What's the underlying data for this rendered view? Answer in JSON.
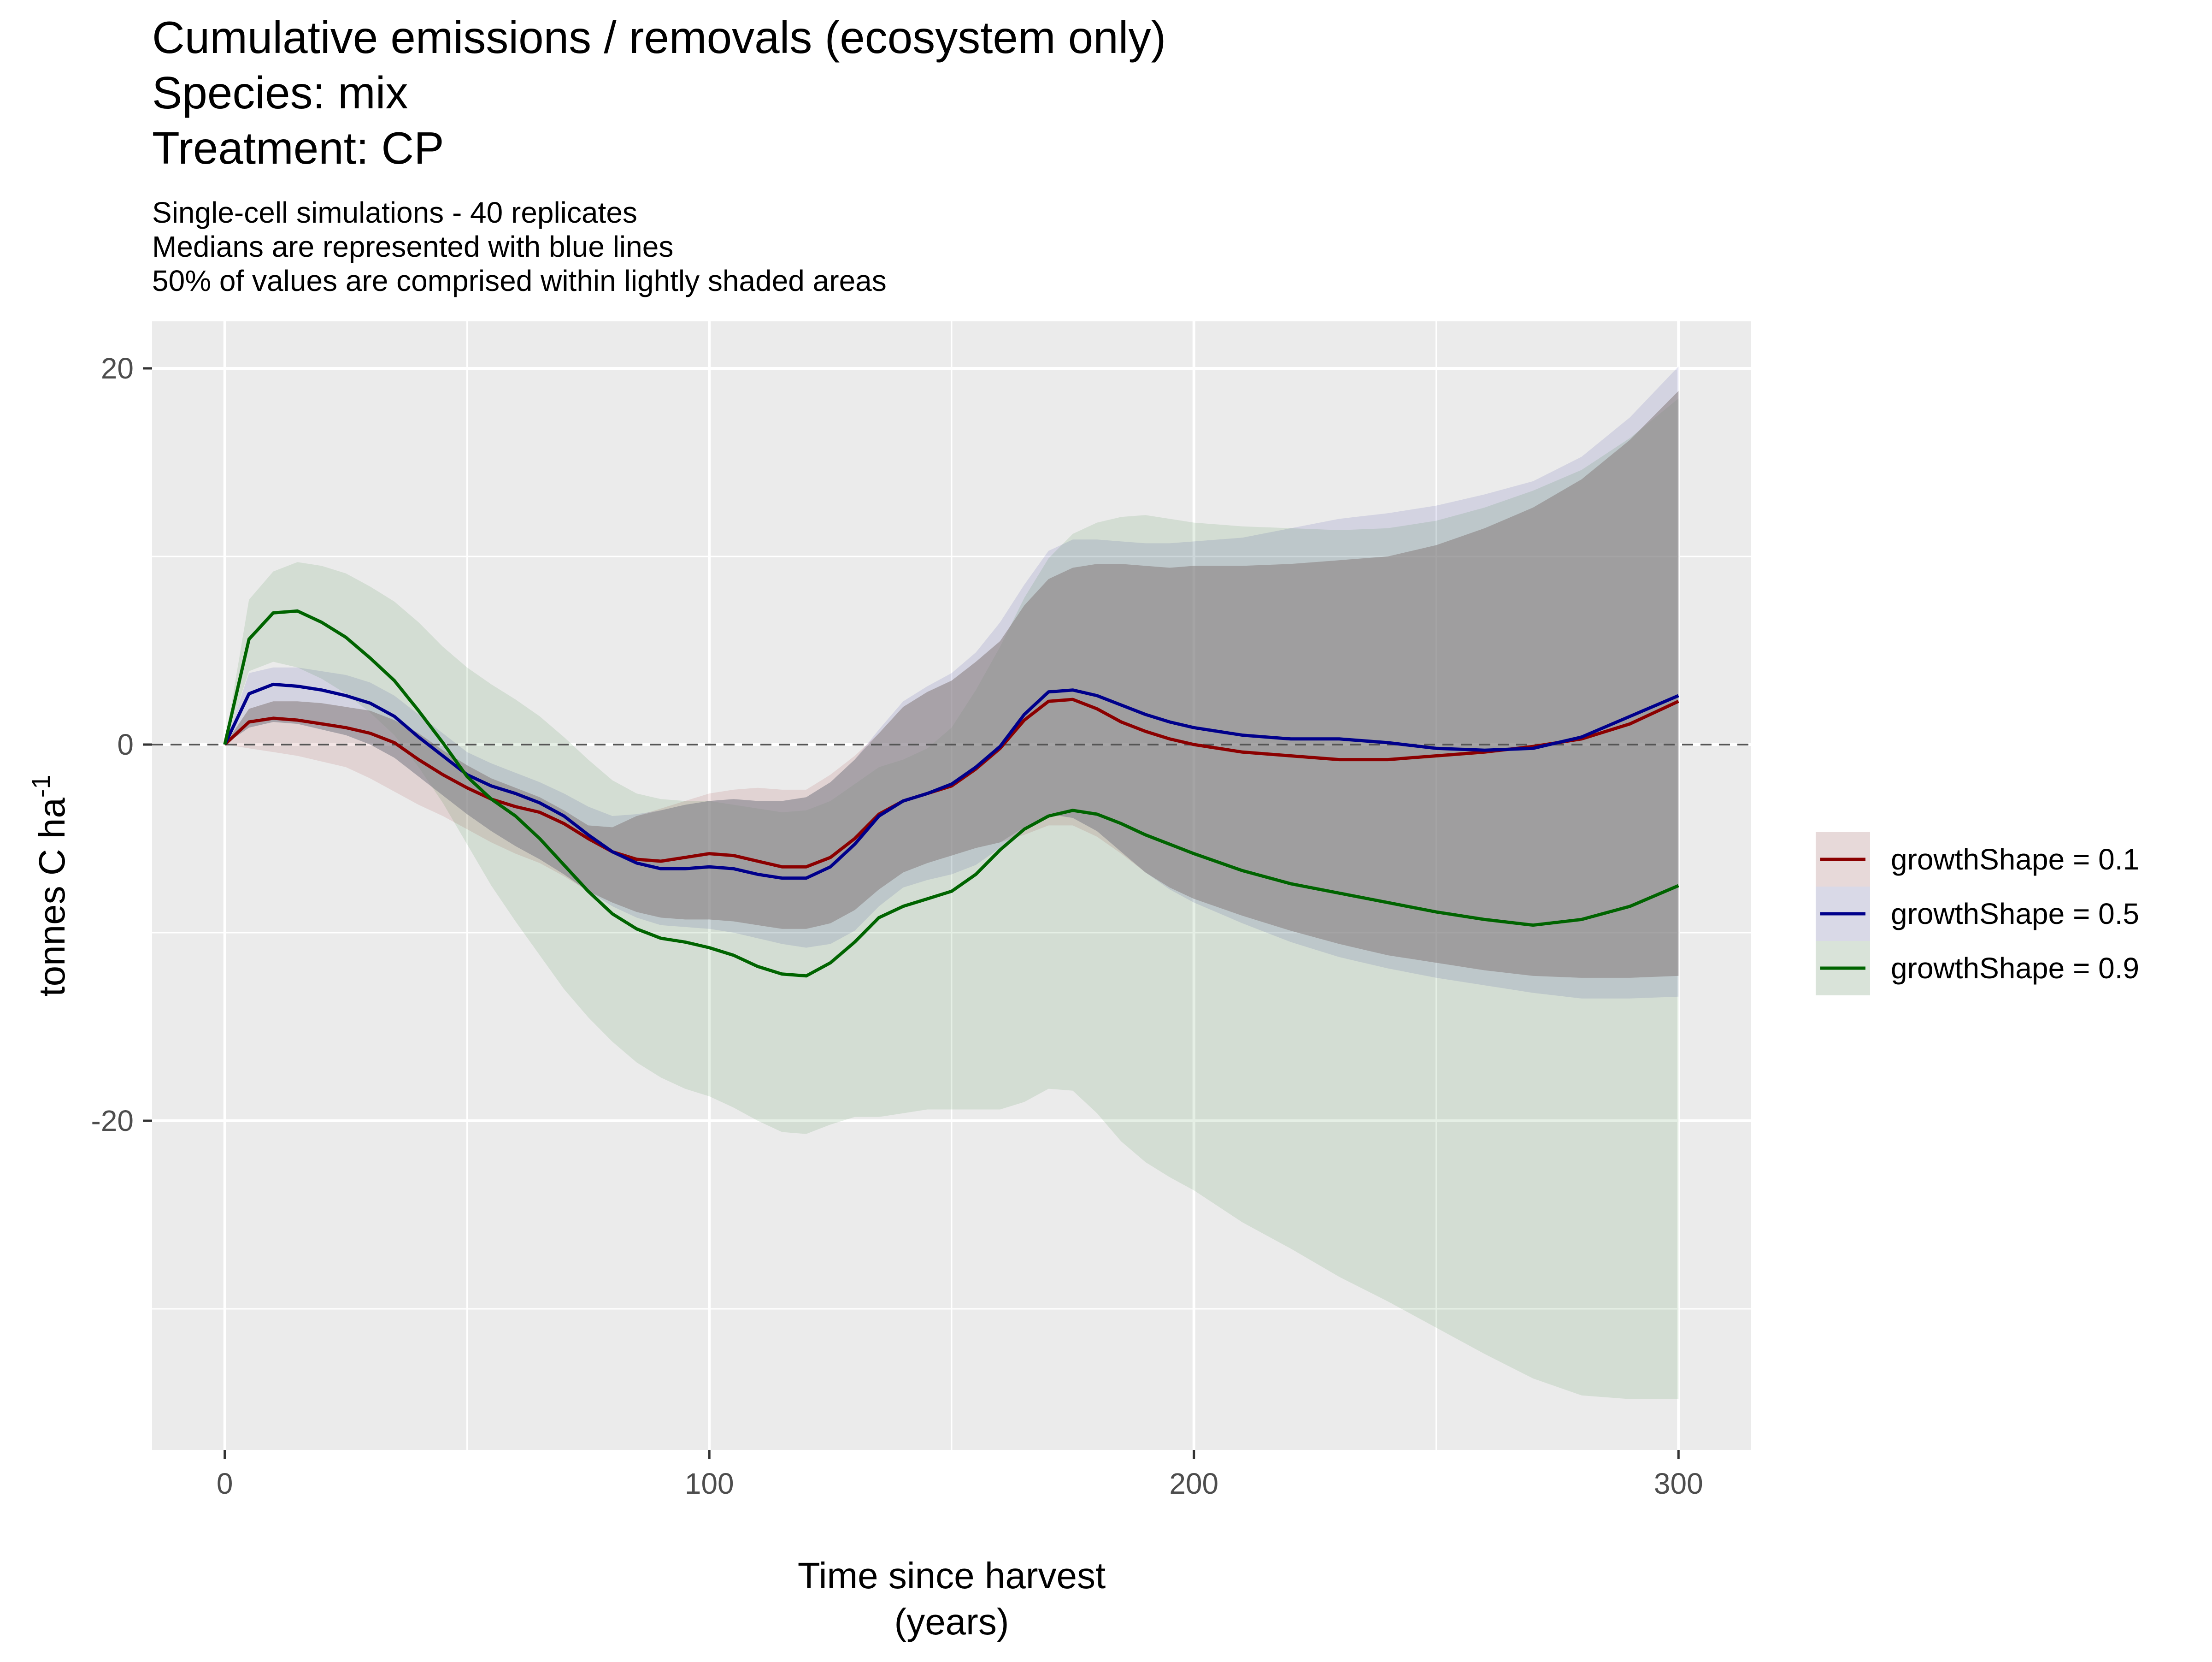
{
  "titles": {
    "line1": "Cumulative emissions / removals (ecosystem only)",
    "line2": "Species: mix",
    "line3": "Treatment: CP"
  },
  "subtitles": {
    "line1": "Single-cell simulations - 40 replicates",
    "line2": "Medians are represented with blue lines",
    "line3": "50% of values are comprised within lightly shaded areas"
  },
  "colors": {
    "panel": "#EBEBEB",
    "grid": "#FFFFFF",
    "zero_line": "#555555",
    "text": "#000000",
    "tick_text": "#4D4D4D",
    "legend_key_bg": "#F2F2F2"
  },
  "chart_data": {
    "type": "line",
    "xlabel_line1": "Time since harvest",
    "xlabel_line2": "(years)",
    "ylabel_main": "tonnes C ha",
    "ylabel_sup": "-1",
    "xlim": [
      -15,
      315
    ],
    "ylim": [
      -37.5,
      22.5
    ],
    "x_ticks": [
      0,
      100,
      200,
      300
    ],
    "y_ticks": [
      -20,
      0,
      20
    ],
    "x_tick_labels": [
      "0",
      "100",
      "200",
      "300"
    ],
    "y_tick_labels": [
      "-20",
      "0",
      "20"
    ],
    "x_minor": [
      50,
      150,
      250
    ],
    "y_minor": [
      -30,
      -10,
      10
    ],
    "zero_reference_line": 0,
    "x": [
      0,
      5,
      10,
      15,
      20,
      25,
      30,
      35,
      40,
      45,
      50,
      55,
      60,
      65,
      70,
      75,
      80,
      85,
      90,
      95,
      100,
      105,
      110,
      115,
      120,
      125,
      130,
      135,
      140,
      145,
      150,
      155,
      160,
      165,
      170,
      175,
      180,
      185,
      190,
      195,
      200,
      210,
      220,
      230,
      240,
      250,
      260,
      270,
      280,
      290,
      300
    ],
    "series": [
      {
        "name": "growthShape = 0.1",
        "color": "#8B0000",
        "median": [
          0,
          1.2,
          1.4,
          1.3,
          1.1,
          0.9,
          0.6,
          0.1,
          -0.8,
          -1.6,
          -2.3,
          -2.9,
          -3.3,
          -3.6,
          -4.2,
          -5.0,
          -5.7,
          -6.1,
          -6.2,
          -6.0,
          -5.8,
          -5.9,
          -6.2,
          -6.5,
          -6.5,
          -6.0,
          -5.0,
          -3.7,
          -3.0,
          -2.6,
          -2.2,
          -1.3,
          -0.2,
          1.3,
          2.3,
          2.4,
          1.9,
          1.2,
          0.7,
          0.3,
          0,
          -0.4,
          -0.6,
          -0.8,
          -0.8,
          -0.6,
          -0.4,
          -0.1,
          0.3,
          1.1,
          2.3
        ],
        "q25": [
          0,
          -0.2,
          -0.4,
          -0.6,
          -0.9,
          -1.2,
          -1.8,
          -2.5,
          -3.2,
          -3.8,
          -4.5,
          -5.2,
          -5.8,
          -6.3,
          -7.0,
          -7.8,
          -8.4,
          -8.9,
          -9.2,
          -9.3,
          -9.3,
          -9.4,
          -9.6,
          -9.8,
          -9.8,
          -9.5,
          -8.8,
          -7.7,
          -6.8,
          -6.3,
          -5.9,
          -5.5,
          -5.2,
          -4.8,
          -4.3,
          -4.3,
          -4.9,
          -5.8,
          -6.8,
          -7.6,
          -8.2,
          -9.1,
          -9.9,
          -10.6,
          -11.2,
          -11.6,
          -12.0,
          -12.3,
          -12.4,
          -12.4,
          -12.3
        ],
        "q75": [
          0,
          1.9,
          2.3,
          2.3,
          2.2,
          2.0,
          1.8,
          1.3,
          0.6,
          -0.3,
          -1.1,
          -1.8,
          -2.3,
          -2.8,
          -3.5,
          -4.3,
          -4.4,
          -3.8,
          -3.4,
          -3.0,
          -2.6,
          -2.4,
          -2.3,
          -2.4,
          -2.4,
          -1.6,
          -0.6,
          0.6,
          2.0,
          2.8,
          3.4,
          4.4,
          5.5,
          7.4,
          8.8,
          9.4,
          9.6,
          9.6,
          9.5,
          9.4,
          9.5,
          9.5,
          9.6,
          9.8,
          10.0,
          10.6,
          11.5,
          12.6,
          14.1,
          16.2,
          18.8
        ]
      },
      {
        "name": "growthShape = 0.5",
        "color": "#00008B",
        "median": [
          0,
          2.7,
          3.2,
          3.1,
          2.9,
          2.6,
          2.2,
          1.5,
          0.4,
          -0.6,
          -1.6,
          -2.2,
          -2.6,
          -3.1,
          -3.8,
          -4.8,
          -5.7,
          -6.3,
          -6.6,
          -6.6,
          -6.5,
          -6.6,
          -6.9,
          -7.1,
          -7.1,
          -6.5,
          -5.3,
          -3.8,
          -3.0,
          -2.6,
          -2.1,
          -1.2,
          -0.1,
          1.6,
          2.8,
          2.9,
          2.6,
          2.1,
          1.6,
          1.2,
          0.9,
          0.5,
          0.3,
          0.3,
          0.1,
          -0.2,
          -0.3,
          -0.2,
          0.4,
          1.5,
          2.6
        ],
        "q25": [
          0,
          0.9,
          1.2,
          1.1,
          0.8,
          0.5,
          0.0,
          -0.7,
          -1.7,
          -2.7,
          -3.7,
          -4.6,
          -5.4,
          -6.1,
          -6.9,
          -7.8,
          -8.6,
          -9.2,
          -9.6,
          -9.7,
          -9.8,
          -10.0,
          -10.3,
          -10.6,
          -10.8,
          -10.6,
          -9.9,
          -8.6,
          -7.6,
          -7.2,
          -6.9,
          -6.4,
          -5.5,
          -4.4,
          -3.7,
          -3.9,
          -4.6,
          -5.7,
          -6.8,
          -7.7,
          -8.4,
          -9.5,
          -10.5,
          -11.3,
          -11.9,
          -12.4,
          -12.8,
          -13.2,
          -13.5,
          -13.5,
          -13.4
        ],
        "q75": [
          0,
          3.8,
          4.1,
          4.1,
          3.9,
          3.7,
          3.3,
          2.6,
          1.6,
          0.6,
          -0.4,
          -1.0,
          -1.5,
          -2.0,
          -2.6,
          -3.3,
          -3.8,
          -3.7,
          -3.5,
          -3.2,
          -3.0,
          -2.9,
          -3.0,
          -3.0,
          -2.8,
          -2.0,
          -0.8,
          0.8,
          2.3,
          3.1,
          3.8,
          4.9,
          6.5,
          8.5,
          10.3,
          10.9,
          10.9,
          10.8,
          10.7,
          10.7,
          10.8,
          11.0,
          11.5,
          12.0,
          12.3,
          12.7,
          13.3,
          14.0,
          15.3,
          17.4,
          20.1
        ]
      },
      {
        "name": "growthShape = 0.9",
        "color": "#006400",
        "median": [
          0,
          5.6,
          7.0,
          7.1,
          6.5,
          5.7,
          4.6,
          3.4,
          1.8,
          0.1,
          -1.7,
          -2.9,
          -3.8,
          -5.0,
          -6.4,
          -7.8,
          -9.0,
          -9.8,
          -10.3,
          -10.5,
          -10.8,
          -11.2,
          -11.8,
          -12.2,
          -12.3,
          -11.6,
          -10.5,
          -9.2,
          -8.6,
          -8.2,
          -7.8,
          -6.9,
          -5.6,
          -4.5,
          -3.8,
          -3.5,
          -3.7,
          -4.2,
          -4.8,
          -5.3,
          -5.8,
          -6.7,
          -7.4,
          -7.9,
          -8.4,
          -8.9,
          -9.3,
          -9.6,
          -9.3,
          -8.6,
          -7.5
        ],
        "q25": [
          0,
          3.9,
          4.4,
          4.1,
          3.5,
          2.7,
          1.7,
          0.5,
          -1.2,
          -3.1,
          -5.3,
          -7.5,
          -9.4,
          -11.2,
          -13.0,
          -14.5,
          -15.8,
          -16.9,
          -17.7,
          -18.3,
          -18.7,
          -19.3,
          -20.0,
          -20.6,
          -20.7,
          -20.2,
          -19.8,
          -19.8,
          -19.6,
          -19.4,
          -19.4,
          -19.4,
          -19.4,
          -19.0,
          -18.3,
          -18.4,
          -19.6,
          -21.1,
          -22.2,
          -23.0,
          -23.7,
          -25.4,
          -26.8,
          -28.3,
          -29.6,
          -31.0,
          -32.4,
          -33.7,
          -34.6,
          -34.8,
          -34.8
        ],
        "q75": [
          0,
          7.7,
          9.2,
          9.7,
          9.5,
          9.1,
          8.4,
          7.6,
          6.5,
          5.2,
          4.1,
          3.2,
          2.4,
          1.5,
          0.4,
          -0.8,
          -1.9,
          -2.6,
          -2.9,
          -3.0,
          -3.0,
          -3.2,
          -3.4,
          -3.6,
          -3.5,
          -3.0,
          -2.1,
          -1.2,
          -0.8,
          -0.2,
          0.9,
          2.9,
          5.2,
          7.8,
          9.9,
          11.2,
          11.8,
          12.1,
          12.2,
          12.0,
          11.8,
          11.6,
          11.5,
          11.4,
          11.5,
          11.9,
          12.6,
          13.5,
          14.6,
          16.3,
          18.4
        ]
      }
    ],
    "legend_position": "right"
  }
}
